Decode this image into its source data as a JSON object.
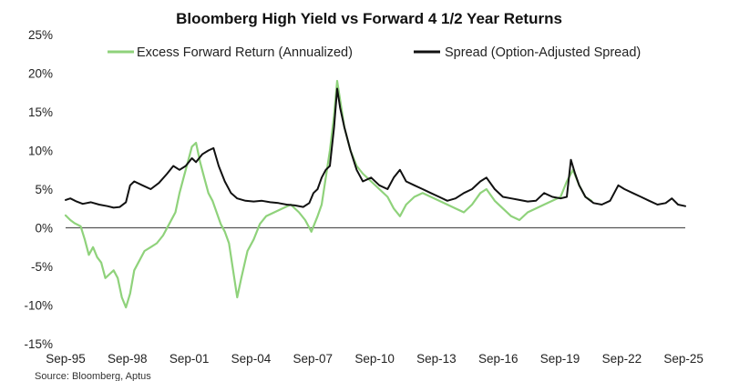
{
  "chart_data": {
    "type": "line",
    "title": "Bloomberg High Yield vs Forward 4 1/2 Year Returns",
    "source": "Source: Bloomberg, Aptus",
    "xlabel": "",
    "ylabel": "",
    "x_range": [
      1995.67,
      2025.75
    ],
    "ylim": [
      -15,
      25
    ],
    "yticks": [
      25,
      20,
      15,
      10,
      5,
      0,
      -5,
      -10,
      -15
    ],
    "ytick_labels": [
      "25%",
      "20%",
      "15%",
      "10%",
      "5%",
      "0%",
      "-5%",
      "-10%",
      "-15%"
    ],
    "xticks": [
      1995.67,
      1998.67,
      2001.67,
      2004.67,
      2007.67,
      2010.67,
      2013.67,
      2016.67,
      2019.67,
      2022.67,
      2025.67
    ],
    "xtick_labels": [
      "Sep-95",
      "Sep-98",
      "Sep-01",
      "Sep-04",
      "Sep-07",
      "Sep-10",
      "Sep-13",
      "Sep-16",
      "Sep-19",
      "Sep-22",
      "Sep-25"
    ],
    "zero_line": true,
    "colors": {
      "excess": "#8fd27b",
      "spread": "#111111",
      "axis": "#444444",
      "zero": "#555555"
    },
    "legend": {
      "placement": "top",
      "entries": [
        "Excess Forward Return (Annualized)",
        "Spread (Option-Adjusted Spread)"
      ]
    },
    "series": [
      {
        "name": "Excess Forward Return (Annualized)",
        "color": "#8fd27b",
        "points": [
          [
            1995.67,
            1.6
          ],
          [
            1995.9,
            1.0
          ],
          [
            1996.1,
            0.6
          ],
          [
            1996.4,
            0.2
          ],
          [
            1996.6,
            -1.5
          ],
          [
            1996.8,
            -3.5
          ],
          [
            1997.0,
            -2.5
          ],
          [
            1997.2,
            -3.8
          ],
          [
            1997.4,
            -4.5
          ],
          [
            1997.6,
            -6.5
          ],
          [
            1997.8,
            -6.0
          ],
          [
            1998.0,
            -5.5
          ],
          [
            1998.2,
            -6.5
          ],
          [
            1998.4,
            -9.0
          ],
          [
            1998.6,
            -10.3
          ],
          [
            1998.8,
            -8.5
          ],
          [
            1999.0,
            -5.5
          ],
          [
            1999.2,
            -4.5
          ],
          [
            1999.5,
            -3.0
          ],
          [
            1999.8,
            -2.5
          ],
          [
            2000.1,
            -2.0
          ],
          [
            2000.4,
            -1.0
          ],
          [
            2000.7,
            0.5
          ],
          [
            2001.0,
            2.0
          ],
          [
            2001.2,
            4.5
          ],
          [
            2001.4,
            6.5
          ],
          [
            2001.6,
            8.5
          ],
          [
            2001.8,
            10.5
          ],
          [
            2002.0,
            11.0
          ],
          [
            2002.2,
            8.5
          ],
          [
            2002.4,
            6.5
          ],
          [
            2002.6,
            4.5
          ],
          [
            2002.8,
            3.5
          ],
          [
            2003.0,
            2.0
          ],
          [
            2003.2,
            0.5
          ],
          [
            2003.4,
            -0.5
          ],
          [
            2003.6,
            -2.0
          ],
          [
            2003.8,
            -5.5
          ],
          [
            2004.0,
            -9.0
          ],
          [
            2004.2,
            -6.5
          ],
          [
            2004.5,
            -3.0
          ],
          [
            2004.8,
            -1.5
          ],
          [
            2005.1,
            0.5
          ],
          [
            2005.4,
            1.5
          ],
          [
            2005.8,
            2.0
          ],
          [
            2006.2,
            2.5
          ],
          [
            2006.6,
            3.0
          ],
          [
            2007.0,
            2.0
          ],
          [
            2007.3,
            1.0
          ],
          [
            2007.6,
            -0.5
          ],
          [
            2007.9,
            1.5
          ],
          [
            2008.1,
            3.0
          ],
          [
            2008.3,
            6.5
          ],
          [
            2008.5,
            10.0
          ],
          [
            2008.7,
            14.5
          ],
          [
            2008.85,
            19.0
          ],
          [
            2009.0,
            16.5
          ],
          [
            2009.2,
            13.0
          ],
          [
            2009.5,
            10.0
          ],
          [
            2009.8,
            8.0
          ],
          [
            2010.1,
            7.0
          ],
          [
            2010.5,
            6.0
          ],
          [
            2010.9,
            5.0
          ],
          [
            2011.3,
            4.0
          ],
          [
            2011.6,
            2.5
          ],
          [
            2011.9,
            1.5
          ],
          [
            2012.2,
            3.0
          ],
          [
            2012.6,
            4.0
          ],
          [
            2013.0,
            4.5
          ],
          [
            2013.4,
            4.0
          ],
          [
            2013.8,
            3.5
          ],
          [
            2014.2,
            3.0
          ],
          [
            2014.6,
            2.5
          ],
          [
            2015.0,
            2.0
          ],
          [
            2015.4,
            3.0
          ],
          [
            2015.8,
            4.5
          ],
          [
            2016.1,
            5.0
          ],
          [
            2016.5,
            3.5
          ],
          [
            2016.9,
            2.5
          ],
          [
            2017.3,
            1.5
          ],
          [
            2017.7,
            1.0
          ],
          [
            2018.1,
            2.0
          ],
          [
            2018.5,
            2.5
          ],
          [
            2018.9,
            3.0
          ],
          [
            2019.3,
            3.5
          ],
          [
            2019.7,
            4.0
          ],
          [
            2020.0,
            6.0
          ],
          [
            2020.3,
            7.5
          ],
          [
            2020.6,
            5.5
          ],
          [
            2020.9,
            4.0
          ],
          [
            2021.2,
            3.5
          ]
        ]
      },
      {
        "name": "Spread (Option-Adjusted Spread)",
        "color": "#111111",
        "points": [
          [
            1995.67,
            3.6
          ],
          [
            1995.9,
            3.8
          ],
          [
            1996.2,
            3.4
          ],
          [
            1996.5,
            3.1
          ],
          [
            1996.9,
            3.3
          ],
          [
            1997.3,
            3.0
          ],
          [
            1997.7,
            2.8
          ],
          [
            1998.0,
            2.6
          ],
          [
            1998.3,
            2.7
          ],
          [
            1998.6,
            3.3
          ],
          [
            1998.8,
            5.5
          ],
          [
            1999.0,
            6.0
          ],
          [
            1999.4,
            5.5
          ],
          [
            1999.8,
            5.0
          ],
          [
            2000.2,
            5.8
          ],
          [
            2000.6,
            7.0
          ],
          [
            2000.9,
            8.0
          ],
          [
            2001.2,
            7.5
          ],
          [
            2001.5,
            8.0
          ],
          [
            2001.8,
            9.0
          ],
          [
            2002.0,
            8.5
          ],
          [
            2002.3,
            9.5
          ],
          [
            2002.6,
            10.0
          ],
          [
            2002.85,
            10.3
          ],
          [
            2003.1,
            8.0
          ],
          [
            2003.4,
            6.0
          ],
          [
            2003.7,
            4.5
          ],
          [
            2004.0,
            3.8
          ],
          [
            2004.4,
            3.5
          ],
          [
            2004.8,
            3.4
          ],
          [
            2005.2,
            3.5
          ],
          [
            2005.6,
            3.3
          ],
          [
            2006.0,
            3.2
          ],
          [
            2006.4,
            3.0
          ],
          [
            2006.8,
            2.9
          ],
          [
            2007.2,
            2.7
          ],
          [
            2007.5,
            3.2
          ],
          [
            2007.7,
            4.5
          ],
          [
            2007.9,
            5.0
          ],
          [
            2008.1,
            6.5
          ],
          [
            2008.3,
            7.5
          ],
          [
            2008.5,
            8.0
          ],
          [
            2008.7,
            13.0
          ],
          [
            2008.85,
            18.0
          ],
          [
            2009.0,
            15.5
          ],
          [
            2009.2,
            13.0
          ],
          [
            2009.5,
            10.0
          ],
          [
            2009.8,
            7.5
          ],
          [
            2010.1,
            6.0
          ],
          [
            2010.5,
            6.5
          ],
          [
            2010.9,
            5.5
          ],
          [
            2011.3,
            5.0
          ],
          [
            2011.6,
            6.5
          ],
          [
            2011.9,
            7.5
          ],
          [
            2012.2,
            6.0
          ],
          [
            2012.6,
            5.5
          ],
          [
            2013.0,
            5.0
          ],
          [
            2013.4,
            4.5
          ],
          [
            2013.8,
            4.0
          ],
          [
            2014.2,
            3.5
          ],
          [
            2014.6,
            3.8
          ],
          [
            2015.0,
            4.5
          ],
          [
            2015.4,
            5.0
          ],
          [
            2015.8,
            6.0
          ],
          [
            2016.1,
            6.5
          ],
          [
            2016.5,
            5.0
          ],
          [
            2016.9,
            4.0
          ],
          [
            2017.3,
            3.8
          ],
          [
            2017.7,
            3.6
          ],
          [
            2018.1,
            3.4
          ],
          [
            2018.5,
            3.5
          ],
          [
            2018.9,
            4.5
          ],
          [
            2019.3,
            4.0
          ],
          [
            2019.7,
            3.8
          ],
          [
            2020.0,
            4.0
          ],
          [
            2020.2,
            8.8
          ],
          [
            2020.4,
            7.0
          ],
          [
            2020.6,
            5.5
          ],
          [
            2020.9,
            4.0
          ],
          [
            2021.3,
            3.2
          ],
          [
            2021.7,
            3.0
          ],
          [
            2022.1,
            3.5
          ],
          [
            2022.5,
            5.5
          ],
          [
            2022.8,
            5.0
          ],
          [
            2023.2,
            4.5
          ],
          [
            2023.6,
            4.0
          ],
          [
            2024.0,
            3.5
          ],
          [
            2024.4,
            3.0
          ],
          [
            2024.8,
            3.2
          ],
          [
            2025.1,
            3.8
          ],
          [
            2025.4,
            3.0
          ],
          [
            2025.75,
            2.8
          ]
        ]
      }
    ]
  }
}
